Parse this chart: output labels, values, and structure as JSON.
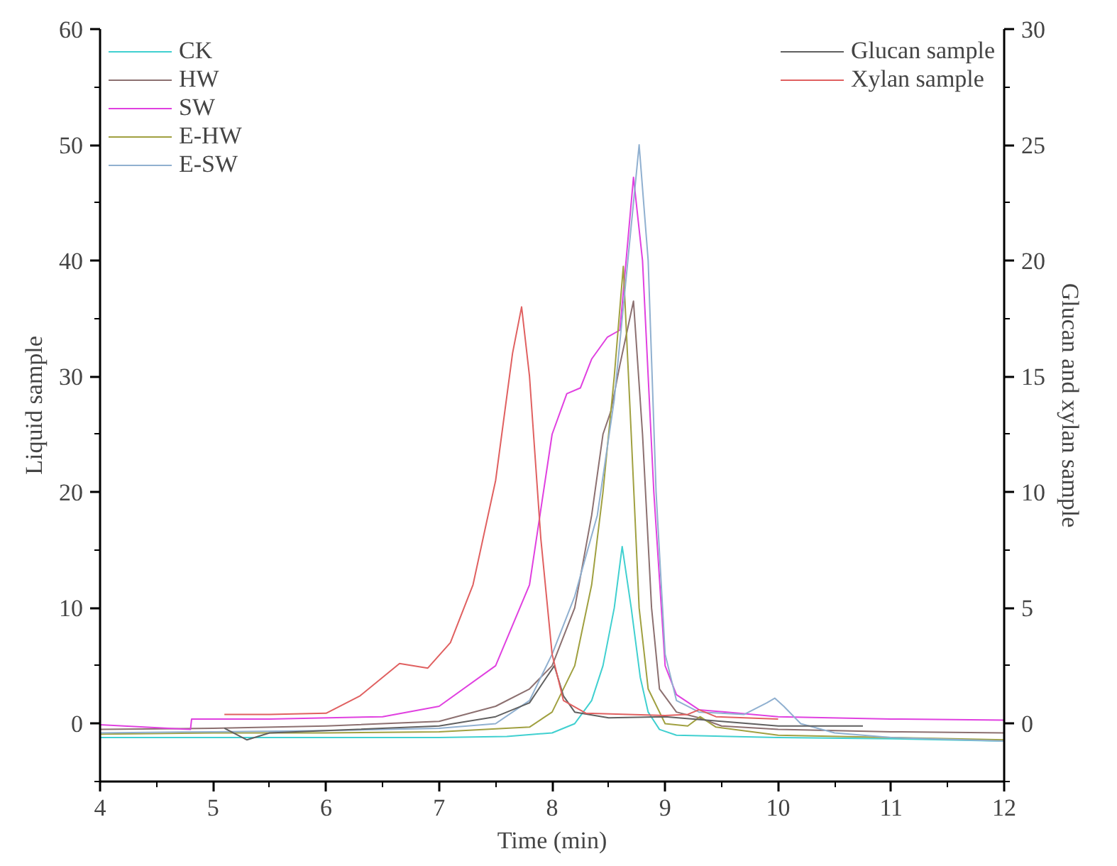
{
  "chart_data": {
    "type": "line",
    "xlabel": "Time (min)",
    "ylabel": "Liquid sample",
    "y2label": "Glucan and xylan sample",
    "xlim": [
      4,
      12
    ],
    "xticks": [
      4,
      5,
      6,
      7,
      8,
      9,
      10,
      11,
      12
    ],
    "ylim": [
      -5,
      60
    ],
    "yticks": [
      0,
      10,
      20,
      30,
      40,
      50,
      60
    ],
    "y2lim": [
      -2.5,
      30
    ],
    "y2ticks": [
      0,
      5,
      10,
      15,
      20,
      25,
      30
    ],
    "grid": false,
    "legend": "top",
    "marker": "none",
    "line_style": "solid",
    "series": [
      {
        "name": "CK",
        "color": "#40d0d0",
        "x": [
          4,
          5,
          6,
          7,
          7.6,
          8.0,
          8.2,
          8.35,
          8.45,
          8.55,
          8.62,
          8.7,
          8.78,
          8.85,
          8.95,
          9.1,
          10,
          11,
          12
        ],
        "values": [
          -1.2,
          -1.2,
          -1.2,
          -1.2,
          -1.1,
          -0.8,
          0,
          2,
          5,
          10,
          15.3,
          10,
          4,
          1,
          -0.5,
          -1.0,
          -1.2,
          -1.3,
          -1.5
        ]
      },
      {
        "name": "HW",
        "color": "#8c7070",
        "x": [
          4,
          5,
          6,
          7,
          7.5,
          7.8,
          8.0,
          8.2,
          8.35,
          8.45,
          8.52,
          8.6,
          8.72,
          8.8,
          8.88,
          8.95,
          9.1,
          9.3,
          9.5,
          10,
          11,
          12
        ],
        "values": [
          -0.5,
          -0.4,
          -0.2,
          0.2,
          1.5,
          3,
          5,
          10,
          18,
          25,
          27,
          31,
          36.5,
          25,
          10,
          3,
          1,
          0.5,
          -0.2,
          -0.5,
          -0.7,
          -0.8
        ]
      },
      {
        "name": "SW",
        "color": "#e040e0",
        "x": [
          4,
          4.8,
          4.81,
          5.5,
          6.5,
          7,
          7.5,
          7.8,
          8.0,
          8.13,
          8.25,
          8.35,
          8.49,
          8.6,
          8.72,
          8.8,
          8.9,
          9.0,
          9.1,
          9.3,
          10,
          11,
          12
        ],
        "values": [
          -0.1,
          -0.5,
          0.4,
          0.4,
          0.6,
          1.5,
          5,
          12,
          25,
          28.5,
          29,
          31.5,
          33.4,
          34,
          47.2,
          40,
          20,
          5,
          2.5,
          1.2,
          0.6,
          0.4,
          0.3
        ]
      },
      {
        "name": "E-HW",
        "color": "#a0a040",
        "x": [
          4,
          5,
          6,
          7,
          7.8,
          8.0,
          8.2,
          8.35,
          8.45,
          8.55,
          8.63,
          8.7,
          8.77,
          8.85,
          9.0,
          9.2,
          9.31,
          9.45,
          10,
          11,
          12
        ],
        "values": [
          -0.9,
          -0.8,
          -0.8,
          -0.7,
          -0.3,
          1,
          5,
          12,
          20,
          30,
          39.5,
          25,
          10,
          3,
          0,
          -0.2,
          0.6,
          -0.3,
          -1.0,
          -1.2,
          -1.4
        ]
      },
      {
        "name": "E-SW",
        "color": "#90b0d0",
        "x": [
          4,
          5,
          6,
          7,
          7.5,
          7.8,
          8.0,
          8.2,
          8.4,
          8.55,
          8.65,
          8.77,
          8.85,
          8.92,
          9.0,
          9.1,
          9.3,
          9.7,
          9.9,
          9.97,
          10.05,
          10.2,
          10.5,
          11,
          12
        ],
        "values": [
          -0.8,
          -0.7,
          -0.6,
          -0.4,
          0,
          2,
          6,
          11,
          18,
          28,
          38,
          50,
          40,
          20,
          6,
          2,
          1,
          0.8,
          1.8,
          2.2,
          1.5,
          0,
          -0.8,
          -1.2,
          -1.5
        ]
      },
      {
        "name": "Glucan sample",
        "color": "#606060",
        "axis": "y2",
        "x": [
          5.1,
          5.3,
          5.5,
          6,
          7,
          7.5,
          7.8,
          7.95,
          8.02,
          8.1,
          8.2,
          8.5,
          9.0,
          9.5,
          10.0,
          10.75
        ],
        "values": [
          -0.2,
          -0.7,
          -0.4,
          -0.3,
          -0.1,
          0.3,
          0.9,
          2.0,
          2.5,
          1.2,
          0.5,
          0.25,
          0.3,
          0.1,
          -0.1,
          -0.1
        ]
      },
      {
        "name": "Xylan sample",
        "color": "#e06060",
        "axis": "y2",
        "x": [
          5.1,
          5.5,
          6.0,
          6.3,
          6.65,
          6.9,
          7.1,
          7.3,
          7.5,
          7.65,
          7.73,
          7.8,
          7.9,
          8.0,
          8.1,
          8.3,
          9.0,
          9.2,
          9.3,
          9.45,
          10.0
        ],
        "values": [
          0.4,
          0.4,
          0.45,
          1.2,
          2.6,
          2.4,
          3.5,
          6,
          10.5,
          16,
          18,
          15,
          8,
          3,
          1,
          0.45,
          0.35,
          0.4,
          0.6,
          0.3,
          0.2
        ]
      }
    ]
  }
}
